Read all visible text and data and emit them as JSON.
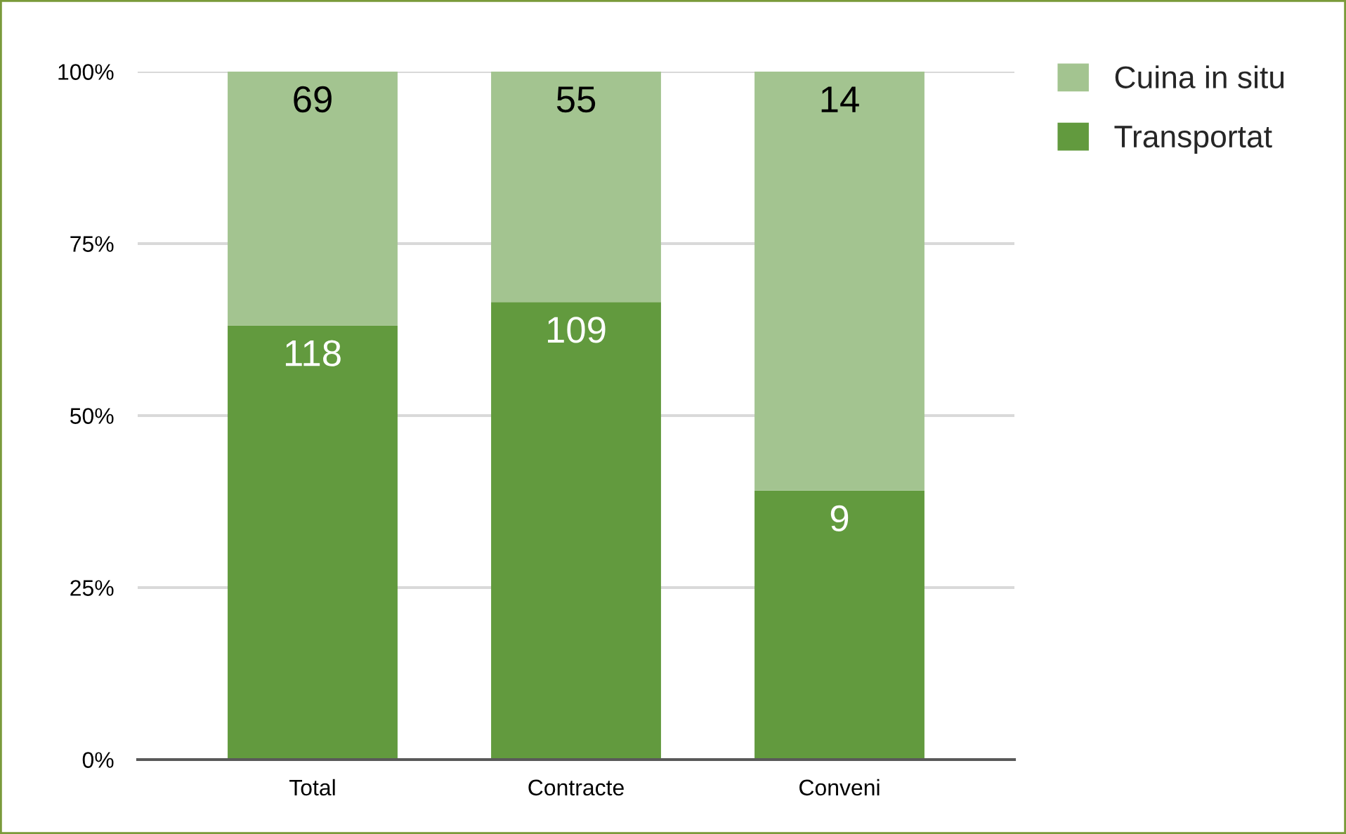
{
  "chart_data": {
    "type": "bar",
    "stacked": true,
    "categories": [
      "Total",
      "Contracte",
      "Conveni"
    ],
    "series": [
      {
        "name": "Transportat",
        "color": "#629a3e",
        "values": [
          63.1,
          66.5,
          39.1
        ]
      },
      {
        "name": "Cuina in situ",
        "color": "#a3c490",
        "values": [
          36.9,
          33.5,
          60.9
        ]
      }
    ],
    "annotations": [
      {
        "text": "118",
        "x": "Total",
        "y": 63.1
      },
      {
        "text": "109",
        "x": "Contracte",
        "y": 66.5
      },
      {
        "text": "9",
        "x": "Conveni",
        "y": 39.1
      },
      {
        "text": "69",
        "x": "Total",
        "y": 100
      },
      {
        "text": "55",
        "x": "Contracte",
        "y": 100
      },
      {
        "text": "14",
        "x": "Conveni",
        "y": 100
      }
    ],
    "ylim": [
      0,
      100
    ],
    "yticks": [
      {
        "value": 0,
        "label": "0%"
      },
      {
        "value": 25,
        "label": "25%"
      },
      {
        "value": 50,
        "label": "50%"
      },
      {
        "value": 75,
        "label": "75%"
      },
      {
        "value": 100,
        "label": "100%"
      }
    ],
    "grid": "y",
    "legend": "top right"
  }
}
